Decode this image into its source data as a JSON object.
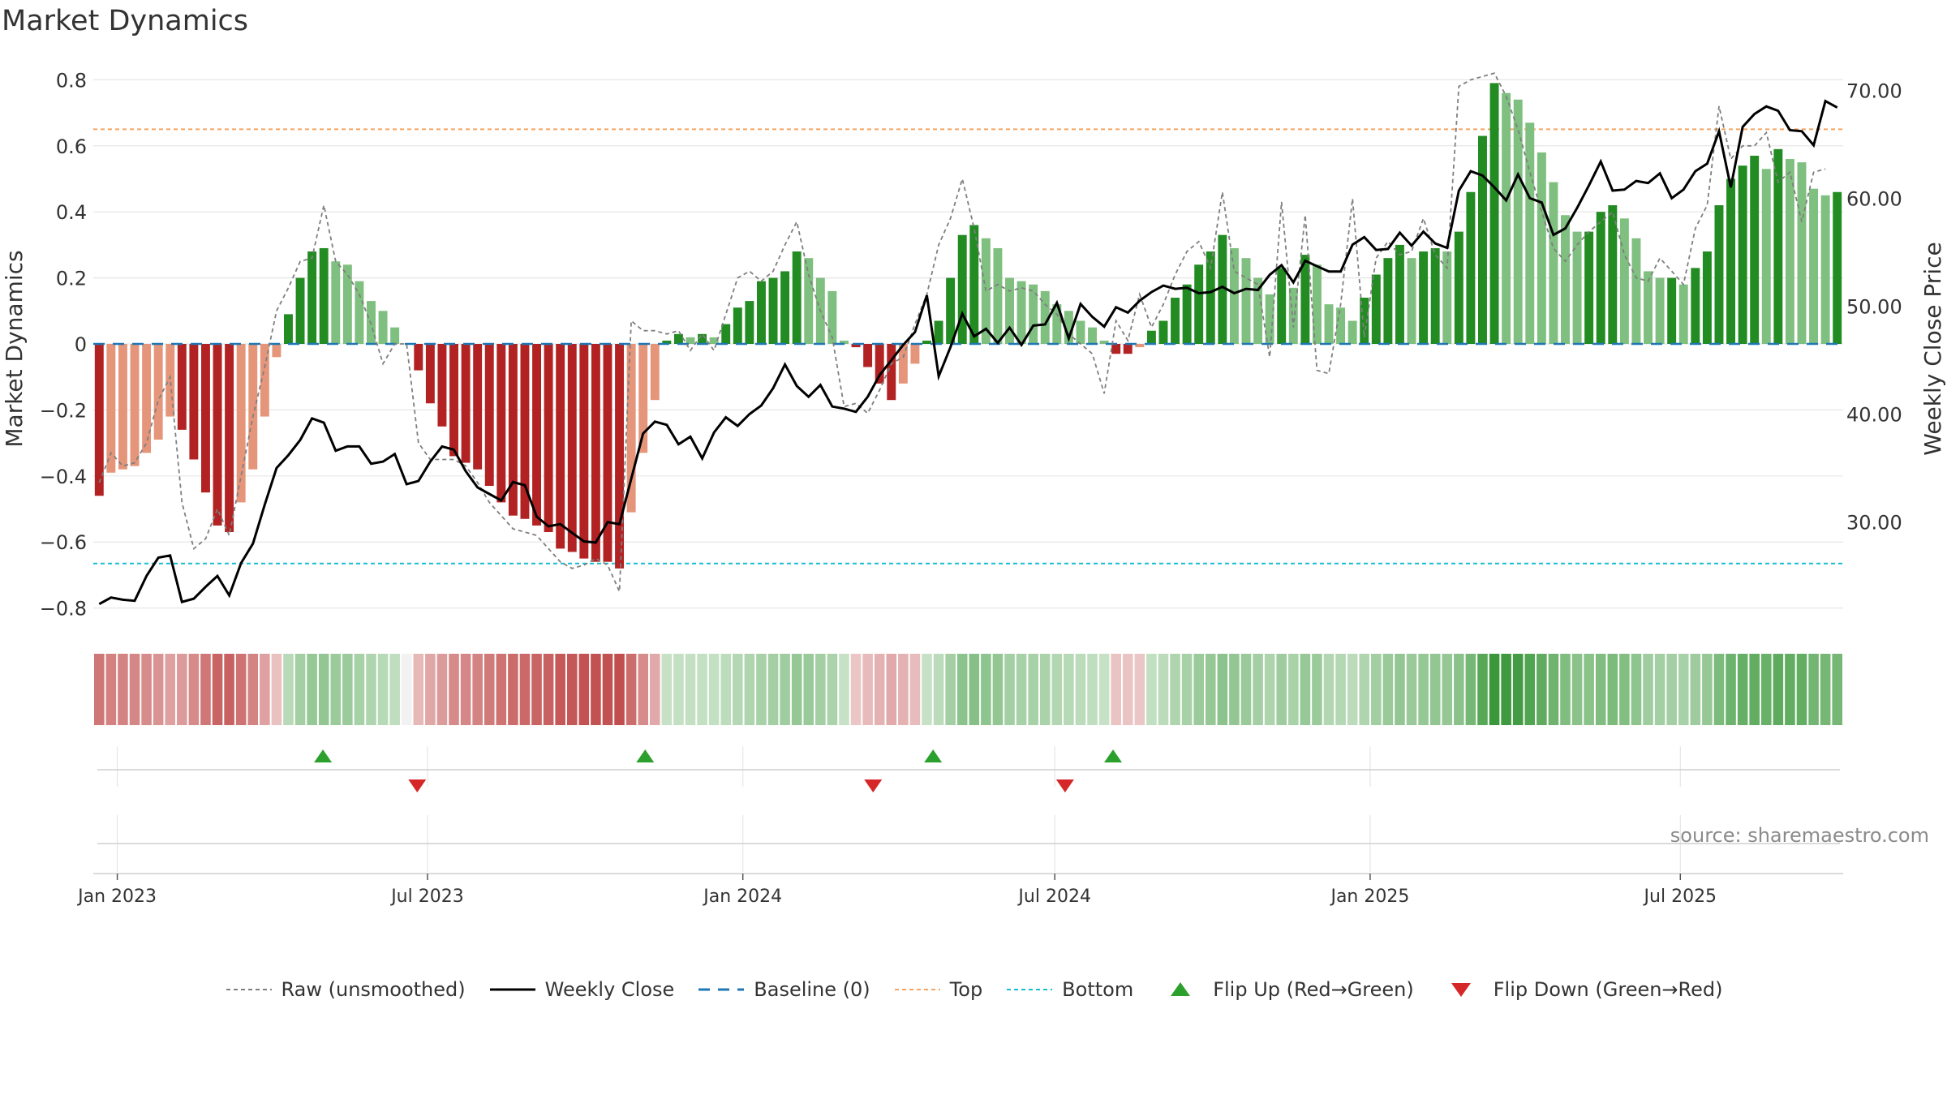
{
  "chart_data": {
    "type": "bar",
    "title": "Market Dynamics",
    "source": "source: sharemaestro.com",
    "ylabel": "Market Dynamics",
    "y2label": "Weekly Close Price",
    "ylim": [
      -0.85,
      0.85
    ],
    "y2lim": [
      20.5,
      72.5
    ],
    "yticks": [
      0.8,
      0.6,
      0.4,
      0.2,
      0,
      -0.2,
      -0.4,
      -0.6,
      -0.8
    ],
    "ytick_labels": [
      "0.8",
      "0.6",
      "0.4",
      "0.2",
      "0",
      "−0.2",
      "−0.4",
      "−0.6",
      "−0.8"
    ],
    "y2ticks": [
      70,
      60,
      50,
      40,
      30
    ],
    "y2tick_labels": [
      "70.00",
      "60.00",
      "50.00",
      "40.00",
      "30.00"
    ],
    "x_dates": [
      "2023-01-01",
      "2023-07-01",
      "2024-01-01",
      "2024-07-01",
      "2025-01-01",
      "2025-07-01"
    ],
    "x_tick_labels": [
      "Jan 2023",
      "Jul 2023",
      "Jan 2024",
      "Jul 2024",
      "Jan 2025",
      "Jul 2025"
    ],
    "x_start": "2022-12-18",
    "x_end": "2025-10-04",
    "top_level": 0.65,
    "bottom_level": -0.665,
    "bars_smoothed": [
      -0.46,
      -0.39,
      -0.38,
      -0.37,
      -0.33,
      -0.29,
      -0.22,
      -0.26,
      -0.35,
      -0.45,
      -0.55,
      -0.57,
      -0.48,
      -0.38,
      -0.22,
      -0.04,
      0.09,
      0.2,
      0.28,
      0.29,
      0.25,
      0.24,
      0.19,
      0.13,
      0.1,
      0.05,
      0,
      -0.08,
      -0.18,
      -0.25,
      -0.34,
      -0.36,
      -0.38,
      -0.43,
      -0.48,
      -0.52,
      -0.53,
      -0.55,
      -0.57,
      -0.62,
      -0.63,
      -0.65,
      -0.66,
      -0.66,
      -0.68,
      -0.51,
      -0.33,
      -0.17,
      0.01,
      0.03,
      0.02,
      0.03,
      0.02,
      0.06,
      0.11,
      0.13,
      0.19,
      0.2,
      0.22,
      0.28,
      0.26,
      0.2,
      0.16,
      0.01,
      -0.01,
      -0.07,
      -0.12,
      -0.17,
      -0.12,
      -0.06,
      0.01,
      0.07,
      0.2,
      0.33,
      0.36,
      0.32,
      0.29,
      0.2,
      0.19,
      0.18,
      0.16,
      0.12,
      0.1,
      0.07,
      0.05,
      0.01,
      -0.03,
      -0.03,
      -0.01,
      0.04,
      0.07,
      0.14,
      0.18,
      0.24,
      0.28,
      0.33,
      0.29,
      0.26,
      0.2,
      0.15,
      0.23,
      0.17,
      0.27,
      0.24,
      0.12,
      0.11,
      0.07,
      0.14,
      0.21,
      0.26,
      0.3,
      0.26,
      0.28,
      0.29,
      0.28,
      0.34,
      0.46,
      0.63,
      0.79,
      0.76,
      0.74,
      0.67,
      0.58,
      0.49,
      0.39,
      0.34,
      0.34,
      0.4,
      0.42,
      0.38,
      0.32,
      0.22,
      0.2,
      0.2,
      0.18,
      0.23,
      0.28,
      0.42,
      0.5,
      0.54,
      0.57,
      0.53,
      0.59,
      0.56,
      0.55,
      0.47,
      0.45,
      0.46
    ],
    "raw_unsmoothed": [
      -0.42,
      -0.33,
      -0.37,
      -0.36,
      -0.3,
      -0.17,
      -0.1,
      -0.48,
      -0.62,
      -0.59,
      -0.5,
      -0.58,
      -0.4,
      -0.22,
      -0.07,
      0.1,
      0.17,
      0.25,
      0.26,
      0.42,
      0.25,
      0.21,
      0.15,
      0.06,
      -0.06,
      0,
      0,
      -0.3,
      -0.35,
      -0.35,
      -0.35,
      -0.37,
      -0.42,
      -0.48,
      -0.52,
      -0.56,
      -0.57,
      -0.58,
      -0.62,
      -0.66,
      -0.68,
      -0.67,
      -0.65,
      -0.67,
      -0.75,
      0.07,
      0.04,
      0.04,
      0.03,
      0.04,
      -0.02,
      0.03,
      -0.02,
      0.09,
      0.2,
      0.22,
      0.19,
      0.22,
      0.3,
      0.37,
      0.21,
      0.1,
      0.02,
      -0.19,
      -0.18,
      -0.21,
      -0.14,
      -0.06,
      -0.04,
      0.06,
      0.15,
      0.3,
      0.38,
      0.5,
      0.35,
      0.16,
      0.18,
      0.16,
      0.17,
      0.16,
      0.12,
      0.09,
      0.03,
      0,
      -0.03,
      -0.15,
      0.07,
      0.01,
      0.15,
      0.05,
      0.12,
      0.21,
      0.28,
      0.31,
      0.23,
      0.46,
      0.22,
      0.2,
      0.18,
      -0.04,
      0.43,
      0.05,
      0.39,
      -0.08,
      -0.09,
      0.12,
      0.44,
      0.02,
      0.26,
      0.31,
      0.27,
      0.28,
      0.38,
      0.27,
      0.23,
      0.78,
      0.8,
      0.81,
      0.82,
      0.75,
      0.65,
      0.52,
      0.4,
      0.29,
      0.25,
      0.3,
      0.34,
      0.37,
      0.4,
      0.27,
      0.2,
      0.19,
      0.26,
      0.22,
      0.18,
      0.35,
      0.42,
      0.72,
      0.56,
      0.6,
      0.6,
      0.64,
      0.49,
      0.52,
      0.37,
      0.52,
      0.53
    ],
    "weekly_close": [
      22.4,
      23,
      22.8,
      22.7,
      25,
      26.7,
      26.9,
      22.6,
      22.9,
      24,
      25,
      23.2,
      26.2,
      28,
      31.6,
      35,
      36.2,
      37.6,
      39.6,
      39.2,
      36.6,
      37,
      37,
      35.4,
      35.6,
      36.3,
      33.5,
      33.8,
      35.6,
      37,
      36.7,
      34.7,
      33.2,
      32.6,
      32,
      33.7,
      33.4,
      30.5,
      29.6,
      29.8,
      29,
      28.2,
      28.1,
      30,
      29.8,
      34,
      38.2,
      39.3,
      39,
      37.2,
      37.9,
      35.9,
      38.3,
      39.7,
      38.9,
      40,
      40.8,
      42.4,
      44.6,
      42.6,
      41.6,
      42.7,
      40.7,
      40.5,
      40.2,
      41.6,
      43.6,
      45,
      46.4,
      47.6,
      51,
      43.5,
      46.2,
      49.3,
      47.2,
      47.9,
      46.6,
      48,
      46.4,
      48.2,
      48.3,
      50.3,
      47,
      50.2,
      49,
      48.1,
      49.9,
      49.4,
      50.5,
      51.3,
      51.9,
      51.6,
      51.7,
      51.2,
      51.3,
      51.8,
      51.2,
      51.6,
      51.5,
      52.9,
      53.8,
      52.2,
      54.2,
      53.7,
      53.2,
      53.2,
      55.7,
      56.4,
      55.2,
      55.3,
      56.8,
      55.6,
      56.9,
      55.8,
      55.4,
      60.7,
      62.5,
      62.1,
      61,
      59.8,
      62.2,
      60,
      59.6,
      56.6,
      57.2,
      59.1,
      61.2,
      63.4,
      60.7,
      60.8,
      61.6,
      61.4,
      62.3,
      60,
      60.8,
      62.5,
      63.2,
      66.2,
      61,
      66.6,
      67.8,
      68.5,
      68.1,
      66.3,
      66.2,
      64.9,
      69,
      68.4
    ],
    "heat_strip": {
      "levels": [
        0.46,
        0.39,
        0.38,
        0.37,
        0.33,
        0.29,
        0.22,
        0.26,
        0.35,
        0.45,
        0.55,
        0.57,
        0.48,
        0.38,
        0.22,
        0.04,
        0.09,
        0.2,
        0.28,
        0.29,
        0.25,
        0.24,
        0.19,
        0.13,
        0.1,
        0.05,
        0,
        0.08,
        0.18,
        0.25,
        0.34,
        0.36,
        0.38,
        0.43,
        0.48,
        0.52,
        0.53,
        0.55,
        0.57,
        0.62,
        0.63,
        0.65,
        0.66,
        0.66,
        0.68,
        0.51,
        0.33,
        0.17,
        0.01,
        0.03,
        0.02,
        0.03,
        0.02,
        0.06,
        0.11,
        0.13,
        0.19,
        0.2,
        0.22,
        0.28,
        0.26,
        0.2,
        0.16,
        0.01,
        0.01,
        0.07,
        0.12,
        0.17,
        0.12,
        0.06,
        0.01,
        0.07,
        0.2,
        0.33,
        0.36,
        0.32,
        0.29,
        0.2,
        0.19,
        0.18,
        0.16,
        0.12,
        0.1,
        0.07,
        0.05,
        0.01,
        0.03,
        0.03,
        0.01,
        0.04,
        0.07,
        0.14,
        0.18,
        0.24,
        0.28,
        0.33,
        0.29,
        0.26,
        0.2,
        0.15,
        0.23,
        0.17,
        0.27,
        0.24,
        0.12,
        0.11,
        0.07,
        0.14,
        0.21,
        0.26,
        0.3,
        0.26,
        0.28,
        0.29,
        0.28,
        0.34,
        0.46,
        0.63,
        0.79,
        0.76,
        0.74,
        0.67,
        0.58,
        0.49,
        0.39,
        0.34,
        0.34,
        0.4,
        0.42,
        0.38,
        0.32,
        0.22,
        0.2,
        0.2,
        0.18,
        0.23,
        0.28,
        0.42,
        0.5,
        0.54,
        0.57,
        0.53,
        0.59,
        0.56,
        0.55,
        0.47,
        0.45,
        0.46
      ]
    },
    "flips": [
      {
        "type": "up",
        "date": "2023-05-01"
      },
      {
        "type": "down",
        "date": "2023-06-25"
      },
      {
        "type": "up",
        "date": "2023-11-05"
      },
      {
        "type": "down",
        "date": "2024-03-17"
      },
      {
        "type": "up",
        "date": "2024-04-21"
      },
      {
        "type": "down",
        "date": "2024-07-07"
      },
      {
        "type": "up",
        "date": "2024-08-04"
      }
    ],
    "legend": {
      "placement": "bottom-center",
      "items": [
        {
          "label": "Raw (unsmoothed)",
          "kind": "dashed-gray"
        },
        {
          "label": "Weekly Close",
          "kind": "solid-black"
        },
        {
          "label": "Baseline (0)",
          "kind": "dashed-blue"
        },
        {
          "label": "Top",
          "kind": "dotted-orange"
        },
        {
          "label": "Bottom",
          "kind": "dotted-teal"
        },
        {
          "label": "Flip Up (Red→Green)",
          "kind": "triangle-up"
        },
        {
          "label": "Flip Down (Green→Red)",
          "kind": "triangle-down"
        }
      ]
    },
    "colors": {
      "strong_green": "#228b22",
      "light_green": "#7fbf7f",
      "strong_red": "#b22222",
      "light_red": "#e5967a",
      "raw_line": "#7f7f7f",
      "close_line": "#000000",
      "baseline": "#1f77b4",
      "top_line": "#f4a460",
      "bottom_line": "#17becf",
      "flip_up": "#2ca02c",
      "flip_down": "#d62728",
      "grid": "#e6e6e6"
    }
  }
}
